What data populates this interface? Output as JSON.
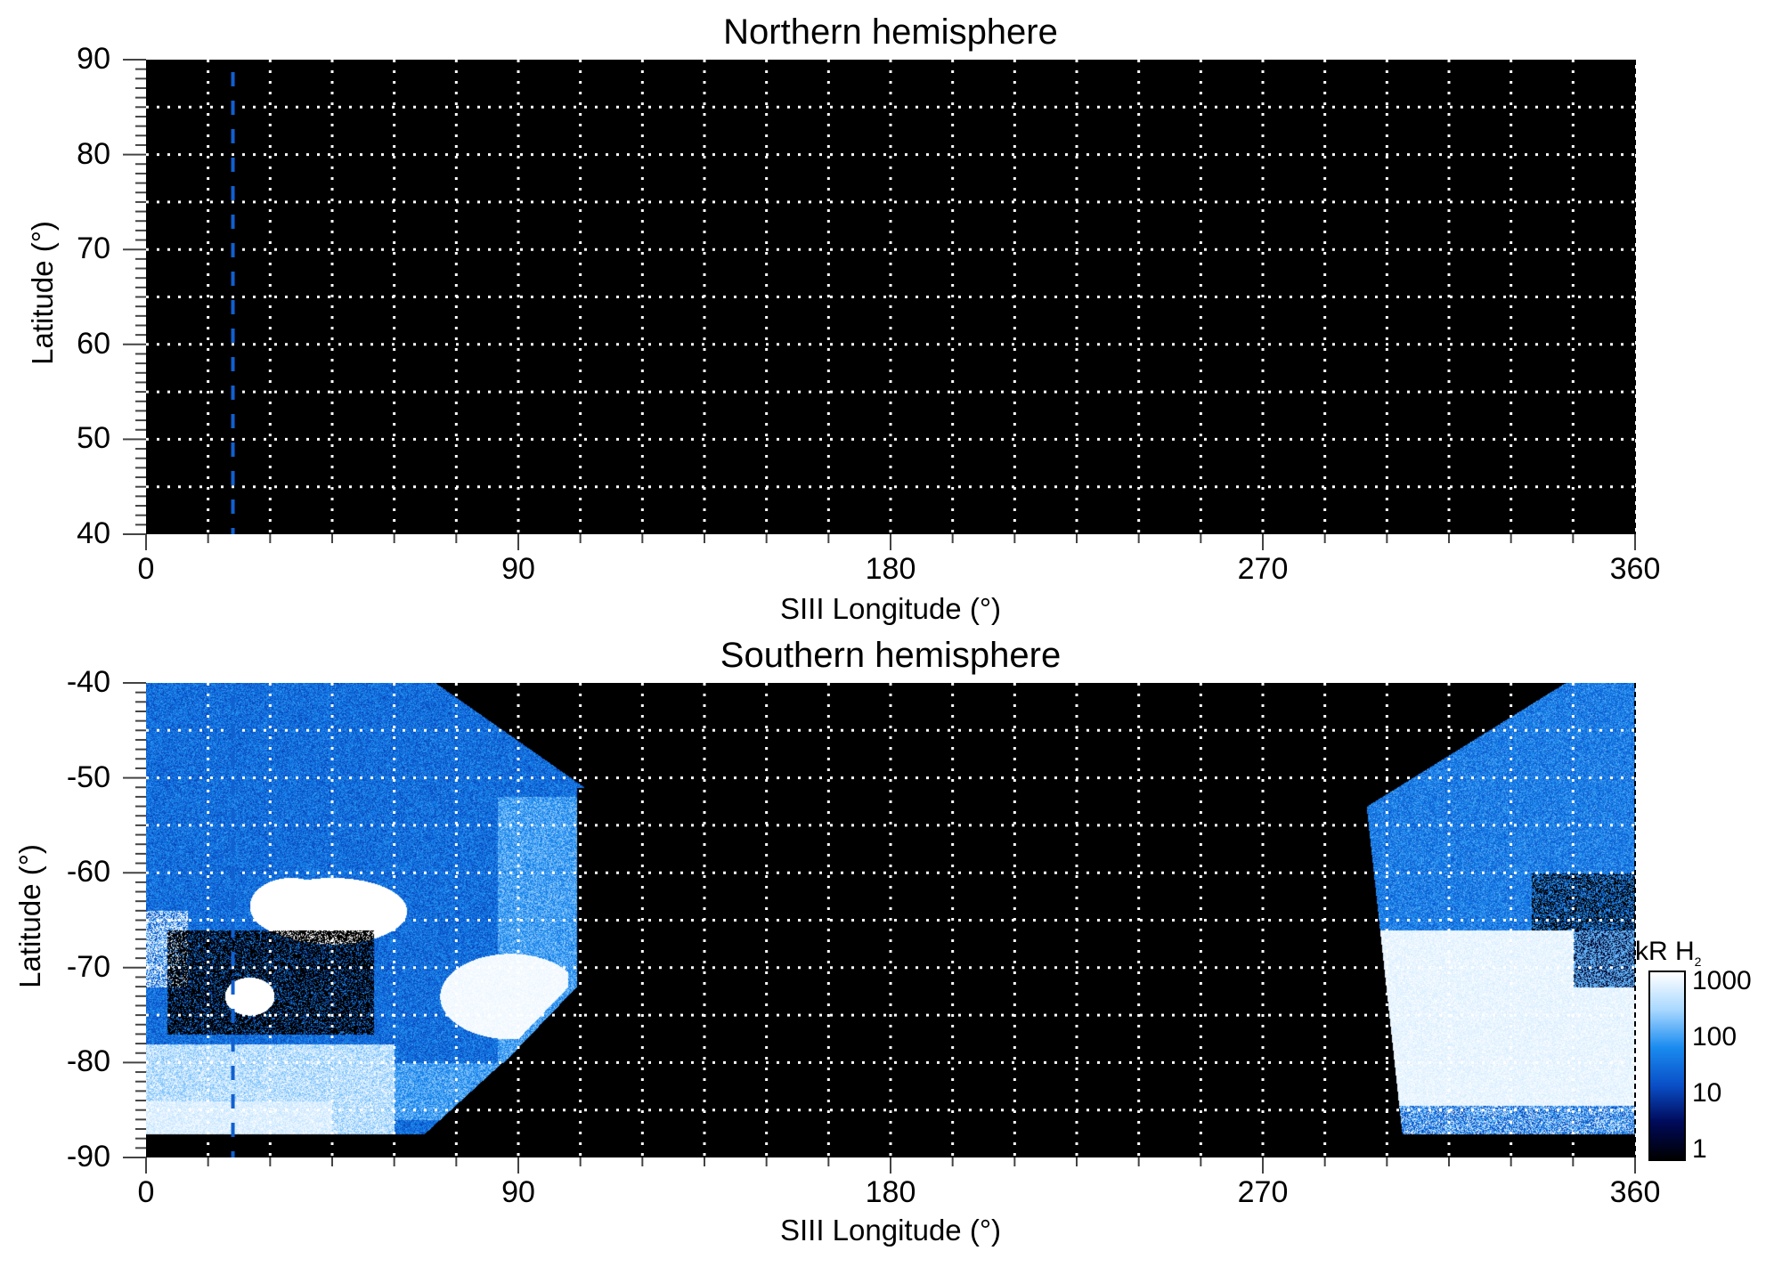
{
  "chart_data": [
    {
      "type": "heatmap",
      "title": "Northern hemisphere",
      "xlabel": "SIII Longitude (°)",
      "ylabel": "Latitude (°)",
      "xlim": [
        0,
        360
      ],
      "ylim": [
        40,
        90
      ],
      "xticks": [
        "0",
        "90",
        "180",
        "270",
        "360"
      ],
      "yticks": [
        "40",
        "50",
        "60",
        "70",
        "80",
        "90"
      ],
      "grid": true,
      "grid_x_step": 15,
      "grid_y_step": 5,
      "marker_longitude": 21,
      "marker_color": "#1060d0",
      "content": "no emission (black)"
    },
    {
      "type": "heatmap",
      "title": "Southern hemisphere",
      "xlabel": "SIII Longitude (°)",
      "ylabel": "Latitude (°)",
      "xlim": [
        0,
        360
      ],
      "ylim": [
        -90,
        -40
      ],
      "xticks": [
        "0",
        "90",
        "180",
        "270",
        "360"
      ],
      "yticks": [
        "-90",
        "-80",
        "-70",
        "-60",
        "-50",
        "-40"
      ],
      "grid": true,
      "grid_x_step": 15,
      "grid_y_step": 5,
      "marker_longitude": 21,
      "marker_color": "#1060d0",
      "colorbar": {
        "label": "kR H",
        "label_sub": "2",
        "scale": "log",
        "range": [
          1,
          1000
        ],
        "ticks": [
          "1000",
          "100",
          "10",
          "1"
        ],
        "colors": [
          "#000000",
          "#000a5a",
          "#0a50c8",
          "#1a8cf0",
          "#a8d8ff",
          "#ffffff"
        ]
      }
    }
  ]
}
